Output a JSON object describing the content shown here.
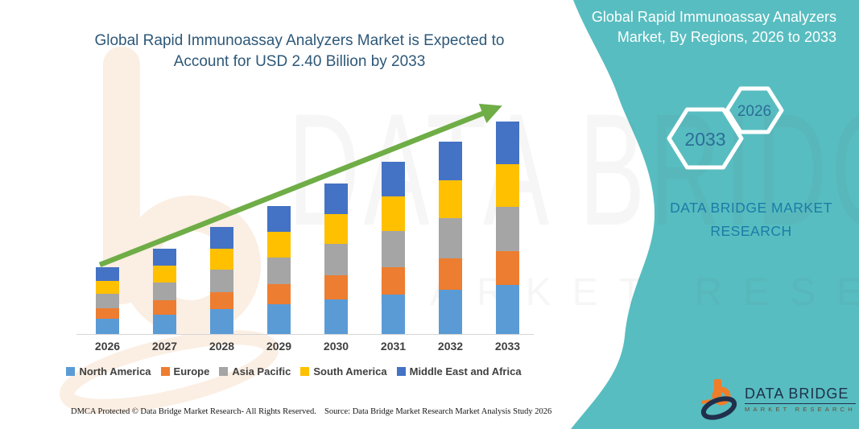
{
  "main": {
    "footer_left": "DMCA Protected © Data Bridge Market Research-  All Rights Reserved.",
    "footer_source": "Source: Data Bridge Market Research  Market Analysis Study 2026",
    "watermark_text_primary": "DATA BRIDGE",
    "watermark_text_secondary": "MARKET RESEARCH"
  },
  "side_panel": {
    "heading": "Global Rapid Immunoassay Analyzers Market, By Regions, 2026 to 2033",
    "hexagons": [
      {
        "label": "2033"
      },
      {
        "label": "2026"
      }
    ],
    "brand_text": "DATA BRIDGE MARKET RESEARCH",
    "background_color": "#58BDC0"
  },
  "logo": {
    "line1": "DATA BRIDGE",
    "line2": "MARKET RESEARCH",
    "orange": "#F07D28",
    "navy": "#20304C"
  },
  "colors": {
    "title_text": "#2E5878",
    "axis_labels": "#3F3F3F",
    "trend_arrow": "#6FAD47",
    "axis_line": "#D6D6D6",
    "watermark_peach": "#FBEEE3"
  },
  "chart_data": {
    "type": "bar",
    "stacked": true,
    "title": "Global Rapid Immunoassay Analyzers Market is Expected to Account for USD 2.40 Billion by 2033",
    "unit": "USD Billion",
    "categories": [
      "2026",
      "2027",
      "2028",
      "2029",
      "2030",
      "2031",
      "2032",
      "2033"
    ],
    "totals_usd_billion": [
      0.74,
      0.97,
      1.2,
      1.45,
      1.68,
      1.93,
      2.16,
      2.4
    ],
    "highlight_value": "USD 2.40 Billion by 2033",
    "series": [
      {
        "name": "North America",
        "color": "#5B9BD5",
        "values": [
          0.17,
          0.22,
          0.28,
          0.33,
          0.39,
          0.44,
          0.5,
          0.55
        ]
      },
      {
        "name": "Europe",
        "color": "#ED7D31",
        "values": [
          0.12,
          0.16,
          0.19,
          0.23,
          0.27,
          0.31,
          0.35,
          0.38
        ]
      },
      {
        "name": "Asia Pacific",
        "color": "#A5A5A5",
        "values": [
          0.16,
          0.2,
          0.25,
          0.3,
          0.35,
          0.41,
          0.45,
          0.5
        ]
      },
      {
        "name": "South America",
        "color": "#FFC000",
        "values": [
          0.15,
          0.19,
          0.24,
          0.29,
          0.34,
          0.39,
          0.43,
          0.48
        ]
      },
      {
        "name": "Middle East and Africa",
        "color": "#4472C4",
        "values": [
          0.15,
          0.19,
          0.24,
          0.29,
          0.34,
          0.39,
          0.43,
          0.48
        ]
      }
    ],
    "trend_arrow": true,
    "legend_position": "bottom",
    "gridlines": false,
    "y_axis_visible": false
  }
}
